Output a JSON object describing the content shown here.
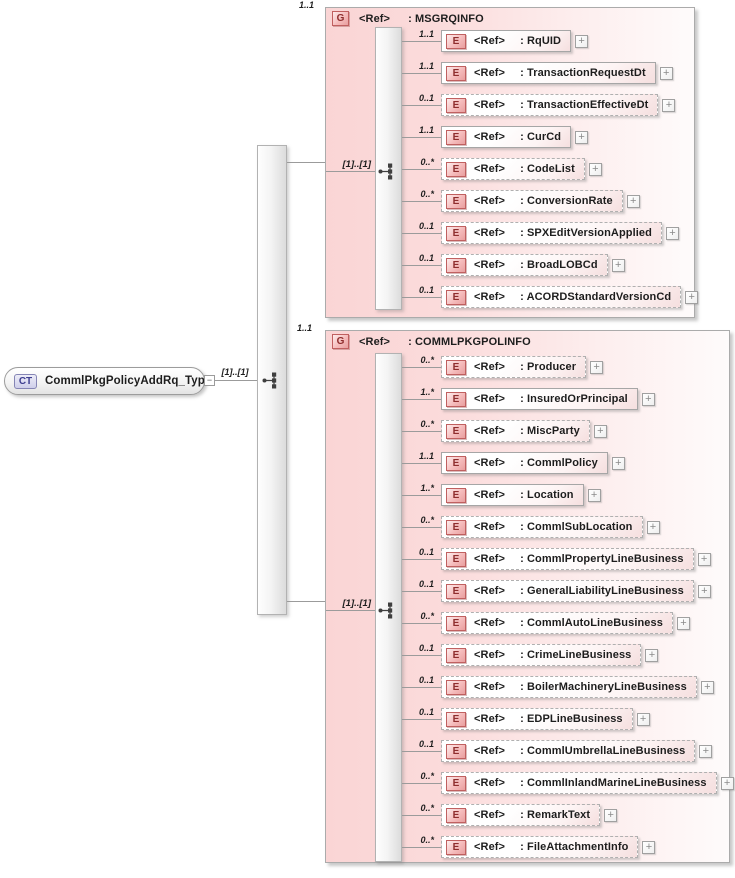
{
  "icons": {
    "collapse": "−",
    "expand": "+"
  },
  "colors": {
    "panel_pink": "#fad5d5",
    "element_badge_border": "#c06060",
    "element_badge_text": "#8e2d2d",
    "complextype_badge_text": "#3d3d8f",
    "box_border": "#a6a6a6",
    "connector_line": "#9b9b9b"
  },
  "root": {
    "badge": "CT",
    "name": "CommlPkgPolicyAddRq_Type",
    "cardinality": "[1]..[1]"
  },
  "groups": [
    {
      "badge": "G",
      "ref_label": "<Ref>",
      "label": ": MSGRQINFO",
      "occurs": "1..1",
      "connector_label": "[1]..[1]",
      "elements": [
        {
          "badge": "E",
          "ref_label": "<Ref>",
          "label": ": RqUID",
          "cardinality": "1..1",
          "required": true
        },
        {
          "badge": "E",
          "ref_label": "<Ref>",
          "label": ": TransactionRequestDt",
          "cardinality": "1..1",
          "required": true
        },
        {
          "badge": "E",
          "ref_label": "<Ref>",
          "label": ": TransactionEffectiveDt",
          "cardinality": "0..1",
          "required": false
        },
        {
          "badge": "E",
          "ref_label": "<Ref>",
          "label": ": CurCd",
          "cardinality": "1..1",
          "required": true
        },
        {
          "badge": "E",
          "ref_label": "<Ref>",
          "label": ": CodeList",
          "cardinality": "0..*",
          "required": false
        },
        {
          "badge": "E",
          "ref_label": "<Ref>",
          "label": ": ConversionRate",
          "cardinality": "0..*",
          "required": false
        },
        {
          "badge": "E",
          "ref_label": "<Ref>",
          "label": ": SPXEditVersionApplied",
          "cardinality": "0..1",
          "required": false
        },
        {
          "badge": "E",
          "ref_label": "<Ref>",
          "label": ": BroadLOBCd",
          "cardinality": "0..1",
          "required": false
        },
        {
          "badge": "E",
          "ref_label": "<Ref>",
          "label": ": ACORDStandardVersionCd",
          "cardinality": "0..1",
          "required": false
        }
      ]
    },
    {
      "badge": "G",
      "ref_label": "<Ref>",
      "label": ": COMMLPKGPOLINFO",
      "occurs": "1..1",
      "connector_label": "[1]..[1]",
      "elements": [
        {
          "badge": "E",
          "ref_label": "<Ref>",
          "label": ": Producer",
          "cardinality": "0..*",
          "required": false
        },
        {
          "badge": "E",
          "ref_label": "<Ref>",
          "label": ": InsuredOrPrincipal",
          "cardinality": "1..*",
          "required": true
        },
        {
          "badge": "E",
          "ref_label": "<Ref>",
          "label": ": MiscParty",
          "cardinality": "0..*",
          "required": false
        },
        {
          "badge": "E",
          "ref_label": "<Ref>",
          "label": ": CommlPolicy",
          "cardinality": "1..1",
          "required": true
        },
        {
          "badge": "E",
          "ref_label": "<Ref>",
          "label": ": Location",
          "cardinality": "1..*",
          "required": true
        },
        {
          "badge": "E",
          "ref_label": "<Ref>",
          "label": ": CommlSubLocation",
          "cardinality": "0..*",
          "required": false
        },
        {
          "badge": "E",
          "ref_label": "<Ref>",
          "label": ": CommlPropertyLineBusiness",
          "cardinality": "0..1",
          "required": false
        },
        {
          "badge": "E",
          "ref_label": "<Ref>",
          "label": ": GeneralLiabilityLineBusiness",
          "cardinality": "0..1",
          "required": false
        },
        {
          "badge": "E",
          "ref_label": "<Ref>",
          "label": ": CommlAutoLineBusiness",
          "cardinality": "0..*",
          "required": false
        },
        {
          "badge": "E",
          "ref_label": "<Ref>",
          "label": ": CrimeLineBusiness",
          "cardinality": "0..1",
          "required": false
        },
        {
          "badge": "E",
          "ref_label": "<Ref>",
          "label": ": BoilerMachineryLineBusiness",
          "cardinality": "0..1",
          "required": false
        },
        {
          "badge": "E",
          "ref_label": "<Ref>",
          "label": ": EDPLineBusiness",
          "cardinality": "0..1",
          "required": false
        },
        {
          "badge": "E",
          "ref_label": "<Ref>",
          "label": ": CommlUmbrellaLineBusiness",
          "cardinality": "0..1",
          "required": false
        },
        {
          "badge": "E",
          "ref_label": "<Ref>",
          "label": ": CommlInlandMarineLineBusiness",
          "cardinality": "0..*",
          "required": false
        },
        {
          "badge": "E",
          "ref_label": "<Ref>",
          "label": ": RemarkText",
          "cardinality": "0..*",
          "required": false
        },
        {
          "badge": "E",
          "ref_label": "<Ref>",
          "label": ": FileAttachmentInfo",
          "cardinality": "0..*",
          "required": false
        }
      ]
    }
  ]
}
